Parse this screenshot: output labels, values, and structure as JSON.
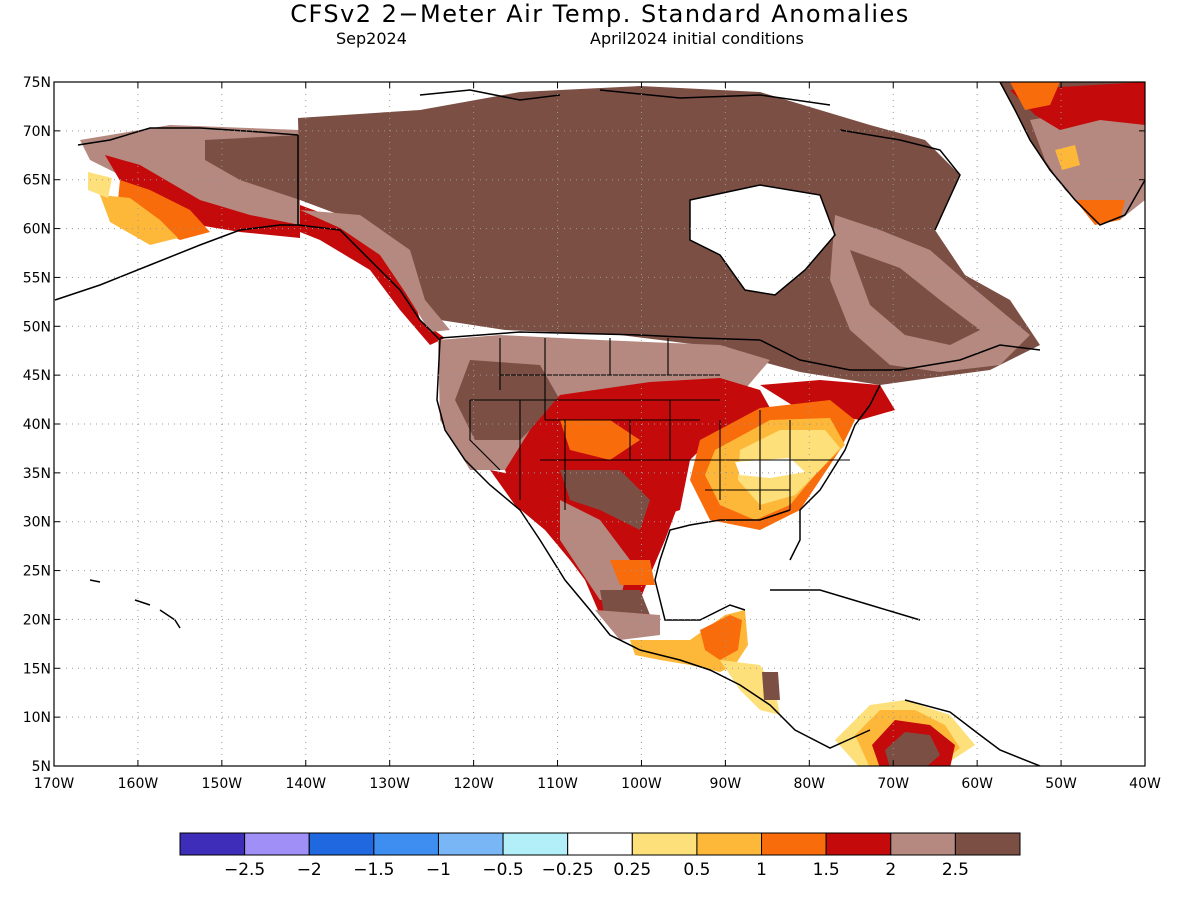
{
  "title": "CFSv2 2−Meter Air Temp. Standard Anomalies",
  "subtitle_month": "Sep2024",
  "subtitle_ic": "April2024 initial conditions",
  "lat_labels": [
    "75N",
    "70N",
    "65N",
    "60N",
    "55N",
    "50N",
    "45N",
    "40N",
    "35N",
    "30N",
    "25N",
    "20N",
    "15N",
    "10N",
    "5N"
  ],
  "lon_labels": [
    "170W",
    "160W",
    "150W",
    "140W",
    "130W",
    "120W",
    "110W",
    "100W",
    "90W",
    "80W",
    "70W",
    "60W",
    "50W",
    "40W"
  ],
  "colorbar": {
    "colors": [
      "#3d2db8",
      "#9f8ff7",
      "#2068e0",
      "#3d8ef0",
      "#78b6f5",
      "#b2eff8",
      "#ffffff",
      "#fde07a",
      "#fdb83a",
      "#f86c0c",
      "#c40a0a",
      "#b5897f",
      "#7c4f45"
    ],
    "labels": [
      "−2.5",
      "−2",
      "−1.5",
      "−1",
      "−0.5",
      "−0.25",
      "0.25",
      "0.5",
      "1",
      "1.5",
      "2",
      "2.5"
    ]
  }
}
